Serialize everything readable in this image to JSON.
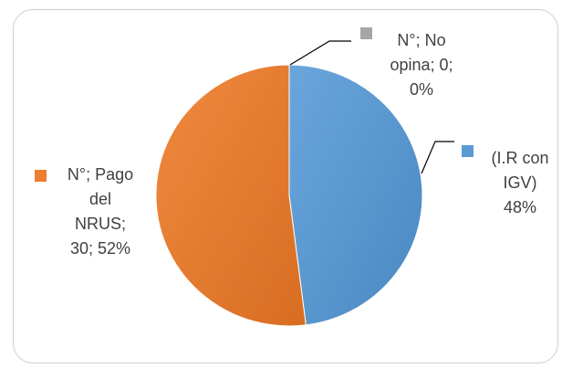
{
  "chart_data": {
    "type": "pie",
    "title": "",
    "slices": [
      {
        "label_lines": [
          "N°; No",
          "opina; 0;",
          "0%"
        ],
        "value": 0,
        "percent": 0,
        "color": "#a5a5a5"
      },
      {
        "label_lines": [
          "(I.R  con",
          "IGV)",
          "48%"
        ],
        "value": null,
        "percent": 48,
        "color": "#5b9bd5"
      },
      {
        "label_lines": [
          "N°; Pago",
          "del",
          "NRUS;",
          "30; 52%"
        ],
        "value": 30,
        "percent": 52,
        "color": "#ed7d31"
      }
    ],
    "legend": "none",
    "data_labels": "outside with leader lines"
  }
}
